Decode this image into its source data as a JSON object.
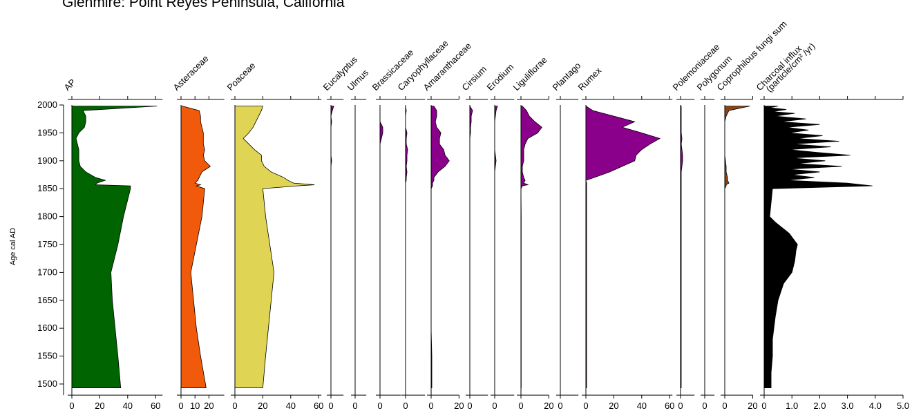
{
  "chart_data": {
    "type": "stratigraphic",
    "title": "Glenmire: Point Reyes Peninsula, California",
    "y_label": "Age cal AD",
    "ylim": [
      1480,
      2000
    ],
    "yticks": [
      1500,
      1550,
      1600,
      1650,
      1700,
      1750,
      1800,
      1850,
      1900,
      1950,
      2000
    ],
    "y": [
      1998,
      1990,
      1980,
      1970,
      1960,
      1950,
      1940,
      1930,
      1920,
      1910,
      1900,
      1890,
      1880,
      1870,
      1865,
      1860,
      1857,
      1855,
      1850,
      1800,
      1750,
      1700,
      1650,
      1600,
      1550,
      1493
    ],
    "panels": [
      {
        "name": "AP",
        "color": "#006400",
        "xlim": [
          0,
          65
        ],
        "xticks": [
          0,
          20,
          40,
          60
        ],
        "values": [
          61,
          8,
          10,
          10,
          9,
          5,
          3,
          4,
          5,
          5,
          5,
          6,
          10,
          17,
          24,
          18,
          17,
          42,
          42,
          37,
          33,
          28,
          29,
          31,
          33,
          35
        ]
      },
      {
        "name": "Asteraceae",
        "color": "#f05a0a",
        "xlim": [
          0,
          31
        ],
        "xticks": [
          0,
          10,
          20
        ],
        "values": [
          1,
          13,
          14,
          14,
          15,
          16,
          16,
          16,
          17,
          16,
          17,
          21,
          15,
          13,
          12,
          10,
          14,
          11,
          17,
          15,
          11,
          7,
          9,
          11,
          14,
          18
        ]
      },
      {
        "name": "Poaceae",
        "color": "#e0d455",
        "xlim": [
          0,
          62
        ],
        "xticks": [
          0,
          20,
          40,
          60
        ],
        "values": [
          20,
          19,
          17,
          15,
          13,
          10,
          6,
          10,
          14,
          19,
          19,
          21,
          26,
          35,
          38,
          42,
          57,
          45,
          20,
          22,
          25,
          28,
          26,
          24,
          22,
          20
        ]
      },
      {
        "name": "Eucalyptus",
        "color": "#8b008b",
        "xlim": [
          0,
          9
        ],
        "xticks": [
          0
        ],
        "values": [
          2,
          1,
          0,
          0.5,
          0,
          0,
          0,
          0,
          0,
          0,
          0.5,
          0,
          0,
          0,
          0,
          0,
          0,
          0,
          0,
          0,
          0,
          0,
          0,
          0,
          0,
          0
        ]
      },
      {
        "name": "Ulmus",
        "color": "#8b008b",
        "xlim": [
          0,
          8
        ],
        "xticks": [
          0
        ],
        "values": [
          0,
          0,
          0,
          0,
          0,
          0,
          0,
          0,
          0,
          0,
          0,
          0,
          0,
          0,
          0,
          0,
          0,
          0,
          0,
          0,
          0,
          0,
          0,
          0,
          0,
          0
        ]
      },
      {
        "name": "Brassicaceae",
        "color": "#8b008b",
        "xlim": [
          0,
          15
        ],
        "xticks": [
          0
        ],
        "values": [
          0,
          0,
          0,
          0,
          2,
          2,
          1,
          0,
          0,
          0,
          0,
          0,
          0,
          0,
          0,
          0,
          0,
          0,
          0,
          0,
          0,
          0,
          0,
          0,
          0,
          0
        ]
      },
      {
        "name": "Caryophyllaceae",
        "color": "#8b008b",
        "xlim": [
          0,
          14
        ],
        "xticks": [
          0
        ],
        "values": [
          0,
          0.5,
          0,
          0,
          0,
          1,
          0.5,
          0.5,
          1.5,
          1,
          1,
          0.5,
          1,
          0.5,
          0.5,
          0,
          0,
          0,
          0,
          0,
          0,
          0,
          0,
          0,
          0,
          0
        ]
      },
      {
        "name": "Amaranthaceae",
        "color": "#8b008b",
        "xlim": [
          0,
          20
        ],
        "xticks": [
          0,
          20
        ],
        "values": [
          2,
          4,
          4,
          3,
          4,
          7,
          6,
          6,
          9,
          10,
          13,
          10,
          5,
          2,
          2,
          1,
          1,
          1,
          0,
          0,
          0,
          0,
          0,
          0,
          0.5,
          0.5
        ]
      },
      {
        "name": "Cirsium",
        "color": "#8b008b",
        "xlim": [
          0,
          13
        ],
        "xticks": [
          0
        ],
        "values": [
          0,
          2,
          1,
          1,
          0.5,
          0.5,
          0,
          0,
          0,
          0,
          0,
          0,
          0,
          0,
          0,
          0,
          0,
          0,
          0,
          0,
          0,
          0,
          0,
          0,
          0,
          0
        ]
      },
      {
        "name": "Erodium",
        "color": "#8b008b",
        "xlim": [
          0,
          14
        ],
        "xticks": [
          0
        ],
        "values": [
          2,
          1,
          0.5,
          0,
          0,
          0,
          0,
          0,
          0,
          0.5,
          1,
          0.5,
          0,
          0,
          0,
          0,
          0,
          0,
          0,
          0,
          0,
          0,
          0,
          0,
          0,
          0
        ]
      },
      {
        "name": "Liguliflorae",
        "color": "#8b008b",
        "xlim": [
          0,
          20
        ],
        "xticks": [
          0,
          20
        ],
        "values": [
          1,
          4,
          6,
          10,
          15,
          12,
          5,
          3,
          2,
          2,
          2,
          1,
          1,
          2,
          3,
          2,
          5,
          1,
          0,
          0.2,
          0.2,
          0.2,
          0.2,
          0.2,
          0.2,
          0.2
        ]
      },
      {
        "name": "Plantago",
        "color": "#8b008b",
        "xlim": [
          0,
          13
        ],
        "xticks": [
          0
        ],
        "values": [
          0,
          0,
          0,
          0,
          0,
          0,
          0,
          0,
          0,
          0,
          0,
          0,
          0,
          0,
          0,
          0,
          0,
          0,
          0,
          0,
          0,
          0,
          0,
          0,
          0,
          0
        ]
      },
      {
        "name": "Rumex",
        "color": "#8b008b",
        "xlim": [
          0,
          62
        ],
        "xticks": [
          0,
          20,
          40,
          60
        ],
        "values": [
          0,
          5,
          20,
          35,
          26,
          40,
          53,
          46,
          40,
          36,
          35,
          26,
          17,
          6,
          0,
          0.5,
          0.5,
          0.5,
          0.5,
          0.5,
          0.5,
          0.5,
          0.5,
          0.5,
          0.5,
          0.5
        ]
      },
      {
        "name": "Polemoniaceae",
        "color": "#8b008b",
        "xlim": [
          0,
          10
        ],
        "xticks": [
          0
        ],
        "values": [
          0.5,
          0.5,
          0.5,
          0.5,
          0.5,
          0.5,
          1,
          0.5,
          1,
          1.5,
          1.5,
          1,
          0.5,
          0.5,
          0.5,
          0.5,
          0.5,
          0.5,
          0.5,
          0.5,
          0.5,
          0.5,
          0.5,
          0.5,
          0.5,
          0.5
        ]
      },
      {
        "name": "Polygonum",
        "color": "#8b008b",
        "xlim": [
          0,
          7
        ],
        "xticks": [
          0
        ],
        "values": [
          0,
          0,
          0,
          0,
          0,
          0,
          0,
          0,
          0,
          0,
          0,
          0,
          0,
          0,
          0,
          0,
          0,
          0,
          0,
          0,
          0,
          0,
          0,
          0,
          0,
          0
        ]
      },
      {
        "name": "Coprophilous fungi sum",
        "color": "#8b4513",
        "xlim": [
          0,
          20
        ],
        "xticks": [
          0,
          20
        ],
        "values": [
          18,
          3,
          1,
          0,
          0,
          0,
          0,
          0,
          0,
          0,
          0.5,
          1,
          1,
          2,
          2,
          3,
          1,
          1,
          0,
          0,
          0,
          0,
          0,
          0,
          0,
          0
        ]
      },
      {
        "name": "Charcoal influx",
        "unit": "(particle/cm² /yr)",
        "color": "#000000",
        "xlim": [
          0,
          5
        ],
        "xticks": [
          0,
          {
            "value": 1,
            "label": "1.0"
          },
          {
            "value": 2,
            "label": "2.0"
          },
          {
            "value": 3,
            "label": "3.0"
          },
          {
            "value": 4,
            "label": "4.0"
          },
          {
            "value": 5,
            "label": "5.0"
          }
        ],
        "y": [
          1998,
          1995,
          1992,
          1988,
          1985,
          1980,
          1975,
          1970,
          1965,
          1960,
          1955,
          1950,
          1945,
          1940,
          1935,
          1930,
          1925,
          1920,
          1915,
          1910,
          1905,
          1900,
          1895,
          1890,
          1885,
          1880,
          1875,
          1870,
          1865,
          1860,
          1855,
          1850,
          1800,
          1790,
          1770,
          1750,
          1740,
          1720,
          1700,
          1680,
          1650,
          1620,
          1600,
          1580,
          1550,
          1520,
          1493
        ],
        "values": [
          0.5,
          0.2,
          0.8,
          0.3,
          1.1,
          0.4,
          1.5,
          0.6,
          2.0,
          0.8,
          1.6,
          0.9,
          2.1,
          1.2,
          2.7,
          1.0,
          2.4,
          0.9,
          1.9,
          3.1,
          1.0,
          2.2,
          1.2,
          2.8,
          0.9,
          2.0,
          1.0,
          1.8,
          0.8,
          3.0,
          3.9,
          0.3,
          0.2,
          0.4,
          0.9,
          1.2,
          1.15,
          1.1,
          1.0,
          0.7,
          0.5,
          0.4,
          0.35,
          0.3,
          0.3,
          0.25,
          0.25
        ]
      }
    ]
  }
}
